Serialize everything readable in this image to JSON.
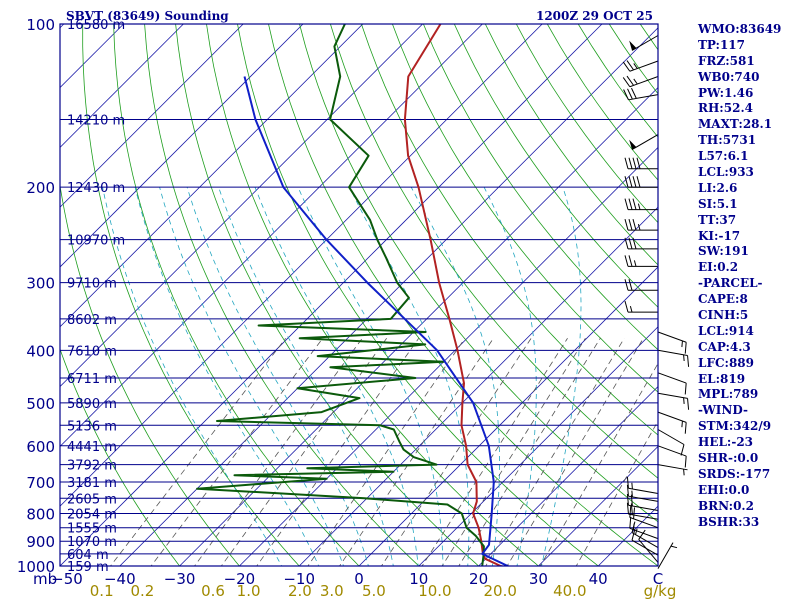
{
  "header": {
    "station": "SBVT (83649) Sounding",
    "time": "1200Z 29 OCT 25"
  },
  "indices": [
    "WMO:83649",
    "TP:117",
    "FRZ:581",
    "WB0:740",
    "PW:1.46",
    "RH:52.4",
    "MAXT:28.1",
    "TH:5731",
    "L57:6.1",
    "LCL:933",
    "LI:2.6",
    "SI:5.1",
    "TT:37",
    "KI:-17",
    "SW:191",
    "EI:0.2",
    "-PARCEL-",
    "CAPE:8",
    "CINH:5",
    "LCL:914",
    "CAP:4.3",
    "LFC:889",
    "EL:819",
    "MPL:789",
    "-WIND-",
    "STM:342/9",
    "HEL:-23",
    "SHR-:0.0",
    "SRDS:-177",
    "EHI:0.0",
    "BRN:0.2",
    "BSHR:33"
  ],
  "colors": {
    "frame": "#00008b",
    "isobar": "#00008b",
    "isotherm": "#1c1ca8",
    "dry_adiabat": "#1f9e1f",
    "moist_adiabat": "#22a6c0",
    "mixing_ratio": "#555555",
    "temperature": "#b22222",
    "dewpoint": "#0b5a0b",
    "parcel": "#1020c8",
    "mix_label": "#a08a00",
    "wind": "#000000"
  },
  "chart_data": {
    "type": "skew-t log-p sounding",
    "title": "SBVT (83649) Sounding",
    "valid_time": "1200Z 29 OCT 25",
    "pressure_axis": {
      "unit": "mb",
      "range": [
        1000,
        100
      ],
      "tick_labels": [
        "100",
        "200",
        "300",
        "400",
        "500",
        "600",
        "700",
        "800",
        "900",
        "1000"
      ]
    },
    "temperature_axis": {
      "unit": "C",
      "range": [
        -50,
        50
      ],
      "tick_values": [
        -40,
        -30,
        -20,
        -10,
        0,
        10,
        20,
        30,
        40
      ],
      "tick_labels": [
        "−40",
        "−30",
        "−20",
        "−10",
        "0",
        "10",
        "20",
        "30",
        "40"
      ],
      "unit_label_left": "mb",
      "first_label": "−50",
      "unit_label_right": "C"
    },
    "height_labels": [
      {
        "p": 100,
        "label": "16580 m"
      },
      {
        "p": 150,
        "label": "14210 m"
      },
      {
        "p": 200,
        "label": "12430 m"
      },
      {
        "p": 250,
        "label": "10970 m"
      },
      {
        "p": 300,
        "label": "9710 m"
      },
      {
        "p": 350,
        "label": "8602 m"
      },
      {
        "p": 400,
        "label": "7610 m"
      },
      {
        "p": 450,
        "label": "6711 m"
      },
      {
        "p": 500,
        "label": "5890 m"
      },
      {
        "p": 550,
        "label": "5136 m"
      },
      {
        "p": 600,
        "label": "4441 m"
      },
      {
        "p": 650,
        "label": "3792 m"
      },
      {
        "p": 700,
        "label": "3181 m"
      },
      {
        "p": 750,
        "label": "2605 m"
      },
      {
        "p": 800,
        "label": "2054 m"
      },
      {
        "p": 850,
        "label": "1555 m"
      },
      {
        "p": 900,
        "label": "1070 m"
      },
      {
        "p": 950,
        "label": "604 m"
      },
      {
        "p": 1000,
        "label": "159 m"
      }
    ],
    "mixing_ratio_labels": [
      {
        "w": 0.1,
        "label": "0.1"
      },
      {
        "w": 0.2,
        "label": "0.2"
      },
      {
        "w": 0.6,
        "label": "0.6"
      },
      {
        "w": 1.0,
        "label": "1.0"
      },
      {
        "w": 2.0,
        "label": "2.0"
      },
      {
        "w": 3.0,
        "label": "3.0"
      },
      {
        "w": 5.0,
        "label": "5.0"
      },
      {
        "w": 10.0,
        "label": "10.0"
      },
      {
        "w": 20.0,
        "label": "20.0"
      },
      {
        "w": 40.0,
        "label": "40.0"
      }
    ],
    "mixing_ratio_unit": "g/kg",
    "series": [
      {
        "name": "temperature",
        "points": [
          {
            "p": 1011,
            "t": 26.2
          },
          {
            "p": 1000,
            "t": 23.7
          },
          {
            "p": 970,
            "t": 19.9
          },
          {
            "p": 950,
            "t": 18.7
          },
          {
            "p": 900,
            "t": 16.3
          },
          {
            "p": 850,
            "t": 13.6
          },
          {
            "p": 800,
            "t": 10.3
          },
          {
            "p": 760,
            "t": 8.9
          },
          {
            "p": 700,
            "t": 5.6
          },
          {
            "p": 650,
            "t": 1.2
          },
          {
            "p": 600,
            "t": -2.2
          },
          {
            "p": 550,
            "t": -6.4
          },
          {
            "p": 500,
            "t": -10.0
          },
          {
            "p": 460,
            "t": -13.0
          },
          {
            "p": 400,
            "t": -19.6
          },
          {
            "p": 350,
            "t": -26.2
          },
          {
            "p": 300,
            "t": -34.0
          },
          {
            "p": 250,
            "t": -42.6
          },
          {
            "p": 200,
            "t": -53.4
          },
          {
            "p": 175,
            "t": -60.4
          },
          {
            "p": 150,
            "t": -67.0
          },
          {
            "p": 125,
            "t": -73.6
          },
          {
            "p": 100,
            "t": -77.0
          }
        ]
      },
      {
        "name": "dewpoint",
        "points": [
          {
            "p": 1011,
            "t": 20.3
          },
          {
            "p": 1000,
            "t": 20.6
          },
          {
            "p": 960,
            "t": 19.2
          },
          {
            "p": 920,
            "t": 17.6
          },
          {
            "p": 880,
            "t": 14.5
          },
          {
            "p": 850,
            "t": 11.6
          },
          {
            "p": 800,
            "t": 8.4
          },
          {
            "p": 770,
            "t": 4.5
          },
          {
            "p": 750,
            "t": -10.4
          },
          {
            "p": 740,
            "t": -20.0
          },
          {
            "p": 720,
            "t": -40.0
          },
          {
            "p": 705,
            "t": -30.0
          },
          {
            "p": 690,
            "t": -20.0
          },
          {
            "p": 680,
            "t": -36.0
          },
          {
            "p": 670,
            "t": -10.0
          },
          {
            "p": 660,
            "t": -25.0
          },
          {
            "p": 650,
            "t": -4.0
          },
          {
            "p": 630,
            "t": -9.0
          },
          {
            "p": 610,
            "t": -12.0
          },
          {
            "p": 590,
            "t": -14.0
          },
          {
            "p": 560,
            "t": -17.0
          },
          {
            "p": 550,
            "t": -20.0
          },
          {
            "p": 540,
            "t": -48.0
          },
          {
            "p": 520,
            "t": -32.0
          },
          {
            "p": 490,
            "t": -28.0
          },
          {
            "p": 470,
            "t": -40.0
          },
          {
            "p": 450,
            "t": -22.0
          },
          {
            "p": 430,
            "t": -38.0
          },
          {
            "p": 420,
            "t": -20.0
          },
          {
            "p": 410,
            "t": -42.0
          },
          {
            "p": 390,
            "t": -26.0
          },
          {
            "p": 380,
            "t": -48.0
          },
          {
            "p": 370,
            "t": -28.0
          },
          {
            "p": 360,
            "t": -57.0
          },
          {
            "p": 350,
            "t": -36.0
          },
          {
            "p": 320,
            "t": -36.5
          },
          {
            "p": 300,
            "t": -41.0
          },
          {
            "p": 270,
            "t": -47.0
          },
          {
            "p": 250,
            "t": -51.5
          },
          {
            "p": 230,
            "t": -56.0
          },
          {
            "p": 200,
            "t": -65.0
          },
          {
            "p": 175,
            "t": -67.0
          },
          {
            "p": 150,
            "t": -79.5
          },
          {
            "p": 125,
            "t": -85.0
          },
          {
            "p": 110,
            "t": -91.0
          },
          {
            "p": 100,
            "t": -93.0
          }
        ]
      },
      {
        "name": "parcel",
        "points": [
          {
            "p": 1011,
            "t": 26.2
          },
          {
            "p": 950,
            "t": 18.6
          },
          {
            "p": 914,
            "t": 18.2
          },
          {
            "p": 850,
            "t": 15.6
          },
          {
            "p": 800,
            "t": 13.4
          },
          {
            "p": 700,
            "t": 8.5
          },
          {
            "p": 600,
            "t": 1.6
          },
          {
            "p": 500,
            "t": -8.2
          },
          {
            "p": 400,
            "t": -23.0
          },
          {
            "p": 300,
            "t": -46.0
          },
          {
            "p": 250,
            "t": -60.0
          },
          {
            "p": 200,
            "t": -76.0
          },
          {
            "p": 150,
            "t": -92.0
          },
          {
            "p": 125,
            "t": -101.0
          }
        ]
      }
    ],
    "wind_barbs": [
      {
        "p": 1011,
        "dir": 30,
        "spd": 5
      },
      {
        "p": 985,
        "dir": 320,
        "spd": 10
      },
      {
        "p": 955,
        "dir": 300,
        "spd": 10
      },
      {
        "p": 925,
        "dir": 300,
        "spd": 15
      },
      {
        "p": 890,
        "dir": 290,
        "spd": 15
      },
      {
        "p": 850,
        "dir": 290,
        "spd": 20
      },
      {
        "p": 820,
        "dir": 280,
        "spd": 20
      },
      {
        "p": 790,
        "dir": 280,
        "spd": 20
      },
      {
        "p": 760,
        "dir": 280,
        "spd": 15
      },
      {
        "p": 735,
        "dir": 280,
        "spd": 15
      },
      {
        "p": 650,
        "dir": 100,
        "spd": 5
      },
      {
        "p": 600,
        "dir": 110,
        "spd": 10
      },
      {
        "p": 560,
        "dir": 120,
        "spd": 10
      },
      {
        "p": 520,
        "dir": 110,
        "spd": 15
      },
      {
        "p": 480,
        "dir": 100,
        "spd": 15
      },
      {
        "p": 440,
        "dir": 110,
        "spd": 10
      },
      {
        "p": 400,
        "dir": 100,
        "spd": 15
      },
      {
        "p": 370,
        "dir": 110,
        "spd": 15
      },
      {
        "p": 340,
        "dir": 270,
        "spd": 15
      },
      {
        "p": 310,
        "dir": 270,
        "spd": 20
      },
      {
        "p": 280,
        "dir": 270,
        "spd": 25
      },
      {
        "p": 260,
        "dir": 270,
        "spd": 30
      },
      {
        "p": 240,
        "dir": 270,
        "spd": 35
      },
      {
        "p": 220,
        "dir": 270,
        "spd": 35
      },
      {
        "p": 200,
        "dir": 270,
        "spd": 40
      },
      {
        "p": 185,
        "dir": 270,
        "spd": 40
      },
      {
        "p": 160,
        "dir": 240,
        "spd": 50
      },
      {
        "p": 135,
        "dir": 260,
        "spd": 30
      },
      {
        "p": 125,
        "dir": 250,
        "spd": 25
      },
      {
        "p": 117,
        "dir": 250,
        "spd": 25
      },
      {
        "p": 105,
        "dir": 240,
        "spd": 50
      }
    ]
  }
}
